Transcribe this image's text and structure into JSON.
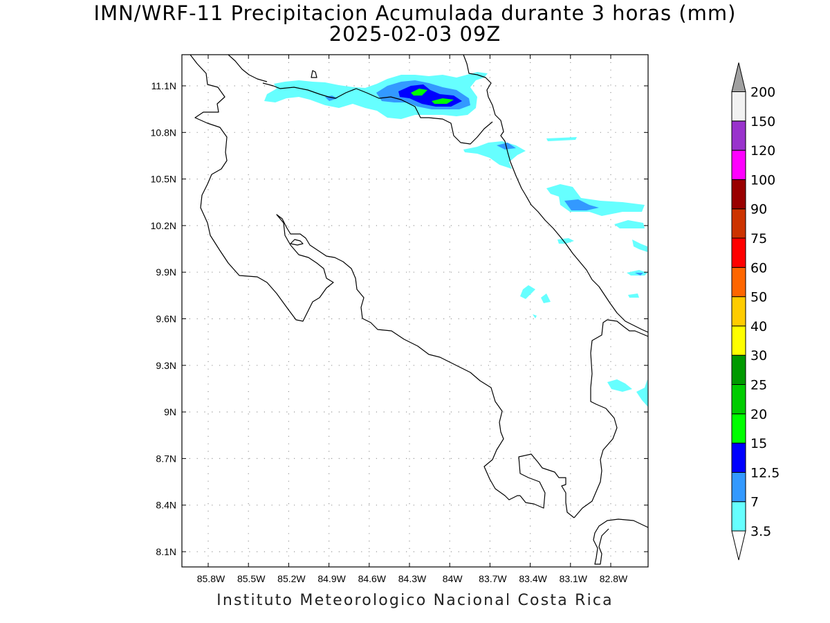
{
  "header": {
    "title_line1": "IMN/WRF-11 Precipitacion Acumulada durante 3 horas (mm)",
    "title_line2": "2025-02-03 09Z"
  },
  "map": {
    "region": "Costa Rica",
    "lat_ticks": [
      "11.1N",
      "10.8N",
      "10.5N",
      "10.2N",
      "9.9N",
      "9.6N",
      "9.3N",
      "9N",
      "8.7N",
      "8.4N",
      "8.1N"
    ],
    "lon_ticks": [
      "85.8W",
      "85.5W",
      "85.2W",
      "84.9W",
      "84.6W",
      "84.3W",
      "84W",
      "83.7W",
      "83.4W",
      "83.1W",
      "82.8W"
    ],
    "grid": "dotted",
    "coastline_color": "#000000"
  },
  "colorbar": {
    "labels": [
      "3.5",
      "7",
      "12.5",
      "15",
      "20",
      "25",
      "30",
      "40",
      "50",
      "60",
      "75",
      "90",
      "100",
      "120",
      "150",
      "200"
    ],
    "colors": [
      "#66ffff",
      "#3399ff",
      "#0000ff",
      "#00ff00",
      "#00cc00",
      "#009900",
      "#ffff00",
      "#ffcc00",
      "#ff6600",
      "#ff0000",
      "#cc3300",
      "#990000",
      "#ff00ff",
      "#9933cc",
      "#f2f2f2"
    ],
    "over_color": "#a0a0a0",
    "under_color": "#ffffff"
  },
  "footer": {
    "credit": "Instituto Meteorologico Nacional Costa Rica"
  }
}
